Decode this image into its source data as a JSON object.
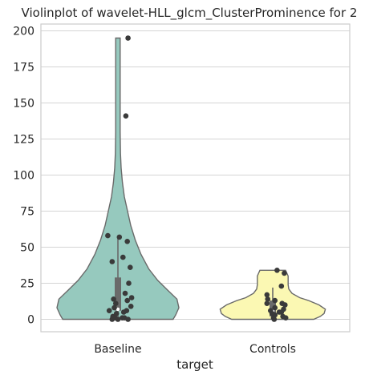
{
  "chart_data": {
    "type": "violin",
    "title": "Violinplot of wavelet-HLL_glcm_ClusterProminence for 2",
    "xlabel": "target",
    "ylabel": "",
    "categories": [
      "Baseline",
      "Controls"
    ],
    "ylim": [
      -10,
      205
    ],
    "yticks": [
      0,
      25,
      50,
      75,
      100,
      125,
      150,
      175,
      200
    ],
    "grid": "horizontal",
    "colors": {
      "Baseline": "#96c9be",
      "Controls": "#fbf8b3"
    },
    "violins": [
      {
        "category": "Baseline",
        "min": 0,
        "max": 195,
        "quartiles": [
          6,
          29
        ],
        "median": 7,
        "whisker": [
          0,
          57
        ],
        "density": [
          [
            0,
            0.86
          ],
          [
            3,
            0.9
          ],
          [
            8,
            0.95
          ],
          [
            14,
            0.92
          ],
          [
            20,
            0.78
          ],
          [
            27,
            0.62
          ],
          [
            35,
            0.48
          ],
          [
            45,
            0.36
          ],
          [
            55,
            0.27
          ],
          [
            65,
            0.2
          ],
          [
            75,
            0.15
          ],
          [
            85,
            0.1
          ],
          [
            95,
            0.07
          ],
          [
            105,
            0.05
          ],
          [
            115,
            0.04
          ],
          [
            130,
            0.035
          ],
          [
            150,
            0.035
          ],
          [
            175,
            0.035
          ],
          [
            195,
            0.035
          ]
        ],
        "points": [
          {
            "x": -0.14,
            "y": 58
          },
          {
            "x": 0.02,
            "y": 57
          },
          {
            "x": 0.13,
            "y": 54
          },
          {
            "x": 0.07,
            "y": 43
          },
          {
            "x": -0.08,
            "y": 40
          },
          {
            "x": 0.17,
            "y": 36
          },
          {
            "x": 0.15,
            "y": 25
          },
          {
            "x": 0.1,
            "y": 18
          },
          {
            "x": 0.19,
            "y": 15
          },
          {
            "x": 0.13,
            "y": 13
          },
          {
            "x": -0.06,
            "y": 14
          },
          {
            "x": -0.03,
            "y": 11
          },
          {
            "x": 0.18,
            "y": 9
          },
          {
            "x": -0.05,
            "y": 8
          },
          {
            "x": -0.12,
            "y": 6
          },
          {
            "x": 0.12,
            "y": 6
          },
          {
            "x": 0.08,
            "y": 5
          },
          {
            "x": -0.02,
            "y": 4
          },
          {
            "x": -0.07,
            "y": 2
          },
          {
            "x": 0.09,
            "y": 1
          },
          {
            "x": -0.04,
            "y": 1
          },
          {
            "x": 0.14,
            "y": 0
          },
          {
            "x": 0.0,
            "y": 0
          },
          {
            "x": 0.06,
            "y": 1
          },
          {
            "x": -0.08,
            "y": 0
          },
          {
            "x": 0.11,
            "y": 141
          },
          {
            "x": 0.14,
            "y": 195
          }
        ]
      },
      {
        "category": "Controls",
        "min": 0,
        "max": 34,
        "quartiles": [
          2,
          13
        ],
        "median": 6,
        "whisker": [
          0,
          22
        ],
        "density": [
          [
            0,
            0.64
          ],
          [
            2,
            0.74
          ],
          [
            4,
            0.8
          ],
          [
            7,
            0.82
          ],
          [
            10,
            0.72
          ],
          [
            13,
            0.56
          ],
          [
            15,
            0.42
          ],
          [
            18,
            0.3
          ],
          [
            21,
            0.25
          ],
          [
            24,
            0.24
          ],
          [
            27,
            0.24
          ],
          [
            30,
            0.24
          ],
          [
            32,
            0.22
          ],
          [
            34,
            0.2
          ]
        ],
        "points": [
          {
            "x": 0.06,
            "y": 34
          },
          {
            "x": 0.16,
            "y": 32
          },
          {
            "x": 0.12,
            "y": 23
          },
          {
            "x": -0.08,
            "y": 17
          },
          {
            "x": -0.07,
            "y": 14
          },
          {
            "x": 0.03,
            "y": 13
          },
          {
            "x": -0.08,
            "y": 11
          },
          {
            "x": 0.13,
            "y": 11
          },
          {
            "x": 0.17,
            "y": 10
          },
          {
            "x": 0.03,
            "y": 8
          },
          {
            "x": 0.15,
            "y": 7
          },
          {
            "x": -0.03,
            "y": 6
          },
          {
            "x": 0.09,
            "y": 5
          },
          {
            "x": 0.12,
            "y": 5
          },
          {
            "x": -0.01,
            "y": 4
          },
          {
            "x": 0.03,
            "y": 3
          },
          {
            "x": 0.14,
            "y": 2
          },
          {
            "x": 0.01,
            "y": 1
          },
          {
            "x": 0.18,
            "y": 1
          },
          {
            "x": 0.02,
            "y": 0
          }
        ]
      }
    ]
  }
}
